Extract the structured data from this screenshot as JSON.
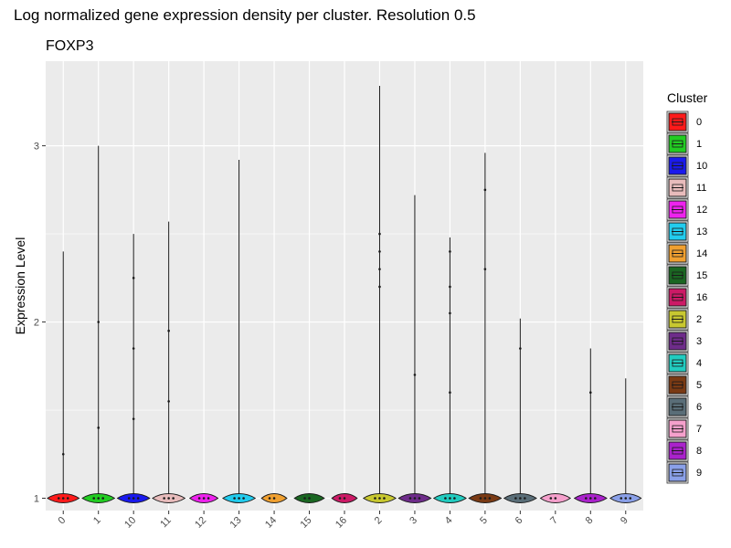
{
  "chart_data": {
    "type": "violin",
    "title": "Log normalized gene expression density per cluster. Resolution 0.5",
    "subtitle": "FOXP3",
    "xlabel": "",
    "ylabel": "Expression Level",
    "ylim": [
      0.93,
      3.48
    ],
    "yticks": [
      1,
      2,
      3
    ],
    "grid": true,
    "legend": {
      "title": "Cluster",
      "position": "right"
    },
    "categories": [
      "0",
      "1",
      "10",
      "11",
      "12",
      "13",
      "14",
      "15",
      "16",
      "2",
      "3",
      "4",
      "5",
      "6",
      "7",
      "8",
      "9"
    ],
    "series": [
      {
        "category": "0",
        "color": "#ff1a1a",
        "max": 2.4,
        "width": 0.9,
        "points": [
          1.0,
          1.0,
          1.0,
          1.25
        ]
      },
      {
        "category": "1",
        "color": "#22cc22",
        "max": 3.0,
        "width": 0.92,
        "points": [
          1.0,
          1.0,
          1.0,
          1.4,
          2.0
        ]
      },
      {
        "category": "10",
        "color": "#1a1aee",
        "max": 2.5,
        "width": 0.92,
        "points": [
          1.0,
          1.0,
          1.0,
          1.45,
          1.85,
          2.25
        ]
      },
      {
        "category": "11",
        "color": "#e8bcbc",
        "max": 2.57,
        "width": 0.92,
        "points": [
          1.0,
          1.0,
          1.0,
          1.55,
          1.95
        ]
      },
      {
        "category": "12",
        "color": "#ee22ee",
        "max": 1.05,
        "width": 0.8,
        "points": [
          1.0,
          1.0,
          1.0
        ]
      },
      {
        "category": "13",
        "color": "#22ccee",
        "max": 2.92,
        "width": 0.92,
        "points": [
          1.0,
          1.0,
          1.0
        ]
      },
      {
        "category": "14",
        "color": "#f0a030",
        "max": 1.04,
        "width": 0.72,
        "points": [
          1.0,
          1.0
        ]
      },
      {
        "category": "15",
        "color": "#1a6622",
        "max": 1.03,
        "width": 0.85,
        "points": [
          1.0,
          1.0
        ]
      },
      {
        "category": "16",
        "color": "#cc1a66",
        "max": 1.03,
        "width": 0.72,
        "points": [
          1.0,
          1.0
        ]
      },
      {
        "category": "2",
        "color": "#c8c830",
        "max": 3.34,
        "width": 0.92,
        "points": [
          1.0,
          1.0,
          1.0,
          2.2,
          2.3,
          2.4,
          2.5
        ]
      },
      {
        "category": "3",
        "color": "#6e2c8a",
        "max": 2.72,
        "width": 0.92,
        "points": [
          1.0,
          1.0,
          1.0,
          1.7
        ]
      },
      {
        "category": "4",
        "color": "#22ccc0",
        "max": 2.48,
        "width": 0.92,
        "points": [
          1.0,
          1.0,
          1.0,
          1.6,
          2.05,
          2.2,
          2.4
        ]
      },
      {
        "category": "5",
        "color": "#7a3a14",
        "max": 2.96,
        "width": 0.92,
        "points": [
          1.0,
          1.0,
          1.0,
          2.3,
          2.75
        ]
      },
      {
        "category": "6",
        "color": "#5a6e78",
        "max": 2.02,
        "width": 0.92,
        "points": [
          1.0,
          1.0,
          1.0,
          1.85
        ]
      },
      {
        "category": "7",
        "color": "#f5a0cc",
        "max": 1.04,
        "width": 0.85,
        "points": [
          1.0,
          1.0
        ]
      },
      {
        "category": "8",
        "color": "#aa22cc",
        "max": 1.85,
        "width": 0.92,
        "points": [
          1.0,
          1.0,
          1.0,
          1.6
        ]
      },
      {
        "category": "9",
        "color": "#8aa0e8",
        "max": 1.68,
        "width": 0.88,
        "points": [
          1.0,
          1.0,
          1.0
        ]
      }
    ]
  }
}
